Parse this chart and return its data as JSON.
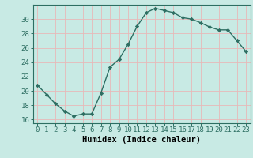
{
  "x": [
    0,
    1,
    2,
    3,
    4,
    5,
    6,
    7,
    8,
    9,
    10,
    11,
    12,
    13,
    14,
    15,
    16,
    17,
    18,
    19,
    20,
    21,
    22,
    23
  ],
  "y": [
    20.8,
    19.5,
    18.2,
    17.2,
    16.5,
    16.8,
    16.8,
    19.7,
    23.3,
    24.4,
    26.5,
    29.0,
    30.9,
    31.5,
    31.2,
    30.9,
    30.2,
    30.0,
    29.5,
    28.9,
    28.5,
    28.5,
    27.0,
    25.5
  ],
  "xlabel": "Humidex (Indice chaleur)",
  "bg_color": "#c8eae4",
  "line_color": "#2d6e62",
  "marker_color": "#2d6e62",
  "grid_color": "#e8b8b8",
  "ylim": [
    15.5,
    32.0
  ],
  "yticks": [
    16,
    18,
    20,
    22,
    24,
    26,
    28,
    30
  ],
  "xlim": [
    -0.5,
    23.5
  ],
  "xticks": [
    0,
    1,
    2,
    3,
    4,
    5,
    6,
    7,
    8,
    9,
    10,
    11,
    12,
    13,
    14,
    15,
    16,
    17,
    18,
    19,
    20,
    21,
    22,
    23
  ],
  "xlabel_fontsize": 7.5,
  "tick_fontsize": 6.5
}
